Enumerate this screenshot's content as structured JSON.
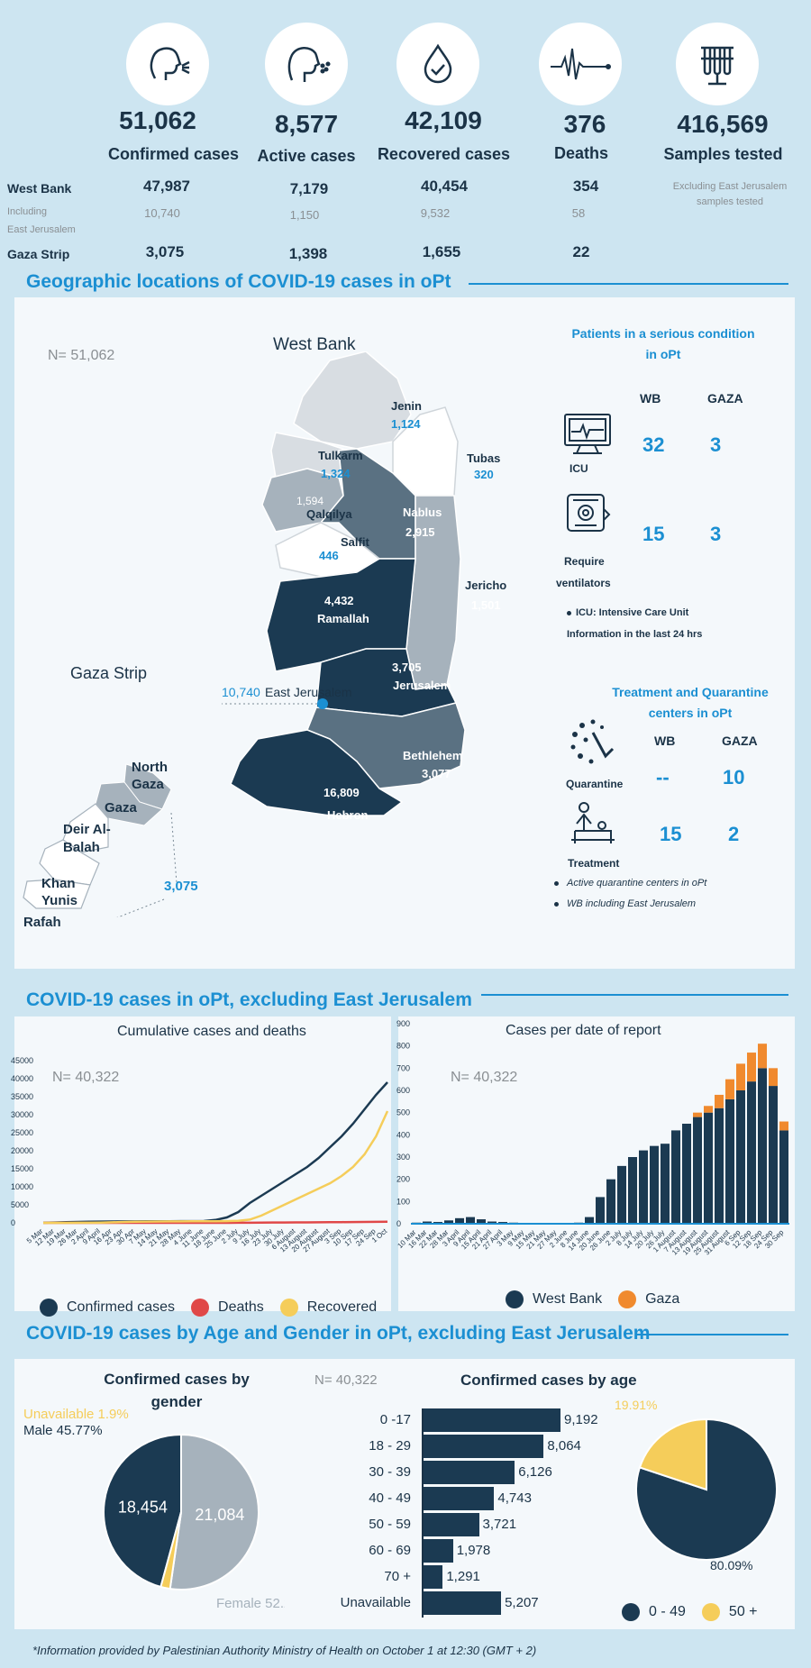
{
  "summary": {
    "items": [
      {
        "number": "51,062",
        "label": "Confirmed cases",
        "icon": "cough-person-icon"
      },
      {
        "number": "8,577",
        "label": "Active cases",
        "icon": "sneeze-person-icon"
      },
      {
        "number": "42,109",
        "label": "Recovered cases",
        "icon": "water-drop-check-icon"
      },
      {
        "number": "376",
        "label": "Deaths",
        "icon": "heartbeat-line-icon"
      },
      {
        "number": "416,569",
        "label": "Samples tested",
        "icon": "test-tubes-icon"
      }
    ],
    "rows": {
      "west_bank": {
        "label": "West Bank",
        "values": [
          "47,987",
          "7,179",
          "40,454",
          "354"
        ]
      },
      "including": {
        "label_line1": "Including",
        "label_line2": "East Jerusalem",
        "values": [
          "10,740",
          "1,150",
          "9,532",
          "58"
        ]
      },
      "gaza": {
        "label": "Gaza Strip",
        "values": [
          "3,075",
          "1,398",
          "1,655",
          "22"
        ]
      }
    },
    "samples_note_line1": "Excluding East Jerusalem",
    "samples_note_line2": "samples tested"
  },
  "geo": {
    "title": "Geographic locations of COVID-19 cases in oPt",
    "n_label": "N= 51,062",
    "west_bank_title": "West Bank",
    "gaza_title": "Gaza Strip",
    "regions": {
      "jenin": {
        "name": "Jenin",
        "value": "1,124"
      },
      "tulkarm": {
        "name": "Tulkarm",
        "value": "1,324"
      },
      "tubas": {
        "name": "Tubas",
        "value": "320"
      },
      "qalqilya": {
        "name": "Qalqilya",
        "value": "1,594"
      },
      "nablus": {
        "name": "Nablus",
        "value": "2,915"
      },
      "salfit": {
        "name": "Salfit",
        "value": "446"
      },
      "jericho": {
        "name": "Jericho",
        "value": "1,501"
      },
      "ramallah": {
        "name": "Ramallah",
        "value": "4,432"
      },
      "jerusalem": {
        "name": "Jerusalem",
        "value": "3,705"
      },
      "east_jerusalem": {
        "name": "East Jerusalem",
        "value": "10,740"
      },
      "bethlehem": {
        "name": "Bethlehem",
        "value": "3,077"
      },
      "hebron": {
        "name": "Hebron",
        "value": "16,809"
      }
    },
    "gaza_regions": [
      "North Gaza",
      "Gaza",
      "Deir Al-Balah",
      "Khan Yunis",
      "Rafah"
    ],
    "gaza_total": "3,075",
    "serious": {
      "title_line1": "Patients in a serious condition",
      "title_line2": "in oPt",
      "col_wb": "WB",
      "col_gaza": "GAZA",
      "icu_label": "ICU",
      "icu_wb": "32",
      "icu_gaza": "3",
      "vent_label_line1": "Require",
      "vent_label_line2": "ventilators",
      "vent_wb": "15",
      "vent_gaza": "3",
      "note1": "ICU: Intensive Care Unit",
      "note2": "Information in the last 24 hrs"
    },
    "treatment": {
      "title_line1": "Treatment and Quarantine",
      "title_line2": "centers in oPt",
      "col_wb": "WB",
      "col_gaza": "GAZA",
      "quarantine_label": "Quarantine",
      "quarantine_wb": "--",
      "quarantine_gaza": "10",
      "treatment_label": "Treatment",
      "treatment_wb": "15",
      "treatment_gaza": "2",
      "note1": "Active quarantine centers in oPt",
      "note2": "WB including East Jerusalem"
    }
  },
  "cases_section": {
    "title": "COVID-19 cases in oPt, excluding East Jerusalem"
  },
  "age_section": {
    "title": "COVID-19 cases by Age and Gender in oPt, excluding East Jerusalem",
    "n_label": "N= 40,322"
  },
  "footer": "*Information provided by Palestinian Authority Ministry of Health on October 1 at 12:30 (GMT + 2)",
  "colors": {
    "navy": "#1b3a52",
    "blue": "#1b8fd2",
    "gray": "#a6b2bc",
    "yellow": "#f5cd5a",
    "red": "#e04848",
    "orange": "#f08a2e"
  },
  "chart_data": [
    {
      "type": "line",
      "title": "Cumulative cases and deaths",
      "n_label": "N= 40,322",
      "x": [
        "5 Mar",
        "12 Mar",
        "19 Mar",
        "26 Mar",
        "2 April",
        "9 April",
        "16 Apr",
        "23 Apr",
        "30 Apr",
        "7 May",
        "14 May",
        "21 May",
        "28 May",
        "4 June",
        "11 June",
        "18 June",
        "25 June",
        "2 July",
        "9 July",
        "16 July",
        "23 July",
        "30 July",
        "6 August",
        "13 August",
        "20 August",
        "27 August",
        "3 Sep",
        "10 Sep",
        "17 Sep",
        "24 Sep",
        "1 Oct"
      ],
      "ylim": [
        0,
        45000
      ],
      "yticks": [
        0,
        5000,
        10000,
        15000,
        20000,
        25000,
        30000,
        35000,
        40000,
        45000
      ],
      "series": [
        {
          "name": "Confirmed cases",
          "color": "#1b3a52",
          "values": [
            20,
            100,
            200,
            250,
            300,
            350,
            380,
            400,
            420,
            430,
            440,
            450,
            460,
            470,
            500,
            800,
            1500,
            3000,
            5500,
            7500,
            9500,
            11500,
            13500,
            15500,
            18000,
            21000,
            24000,
            27500,
            31500,
            35500,
            39000
          ]
        },
        {
          "name": "Deaths",
          "color": "#e04848",
          "values": [
            0,
            0,
            0,
            1,
            2,
            3,
            4,
            4,
            4,
            4,
            4,
            4,
            4,
            4,
            4,
            5,
            10,
            20,
            40,
            60,
            80,
            100,
            120,
            140,
            160,
            180,
            200,
            220,
            250,
            280,
            300
          ]
        },
        {
          "name": "Recovered",
          "color": "#f5cd5a",
          "values": [
            0,
            0,
            10,
            20,
            40,
            60,
            150,
            250,
            300,
            350,
            380,
            400,
            420,
            430,
            440,
            450,
            480,
            550,
            900,
            2000,
            3500,
            5000,
            6500,
            8000,
            9500,
            11000,
            13000,
            15500,
            19000,
            24000,
            31000
          ]
        }
      ]
    },
    {
      "type": "bar",
      "stacked": true,
      "title": "Cases per date of report",
      "n_label": "N= 40,322",
      "x": [
        "10 Mar",
        "16 Mar",
        "22 Mar",
        "28 Mar",
        "3 April",
        "9 April",
        "15 April",
        "21 April",
        "27 April",
        "3 May",
        "9 May",
        "15 May",
        "21 May",
        "27 May",
        "2 June",
        "8 June",
        "14 June",
        "20 June",
        "26 June",
        "2 July",
        "8 July",
        "14 July",
        "20 July",
        "26 July",
        "1 August",
        "7 August",
        "13 August",
        "19 August",
        "25 August",
        "31 August",
        "6 Sep",
        "12 Sep",
        "18 Sep",
        "24 Sep",
        "30 Sep"
      ],
      "ylim": [
        0,
        900
      ],
      "yticks": [
        0,
        100,
        200,
        300,
        400,
        500,
        600,
        700,
        800,
        900
      ],
      "series": [
        {
          "name": "West Bank",
          "color": "#1b3a52",
          "values": [
            5,
            10,
            8,
            15,
            25,
            30,
            20,
            10,
            8,
            5,
            3,
            2,
            2,
            3,
            2,
            5,
            30,
            120,
            200,
            260,
            300,
            330,
            350,
            360,
            420,
            450,
            480,
            500,
            520,
            560,
            600,
            640,
            700,
            620,
            420
          ]
        },
        {
          "name": "Gaza",
          "color": "#f08a2e",
          "values": [
            0,
            0,
            0,
            0,
            0,
            0,
            0,
            0,
            0,
            0,
            0,
            0,
            0,
            0,
            0,
            0,
            0,
            0,
            0,
            0,
            0,
            0,
            0,
            0,
            0,
            0,
            20,
            30,
            60,
            90,
            120,
            130,
            110,
            80,
            40
          ]
        }
      ]
    },
    {
      "type": "pie",
      "title": "Confirmed cases by gender",
      "labels": [
        "Male",
        "Female",
        "Unavailable"
      ],
      "values": [
        18454,
        21084,
        784
      ],
      "percent_labels": [
        "Male 45.77%",
        "Female 52.29%",
        "Unavailable 1.9%"
      ],
      "slice_labels": [
        "18,454",
        "21,084",
        ""
      ],
      "colors": [
        "#1b3a52",
        "#a6b2bc",
        "#f5cd5a"
      ]
    },
    {
      "type": "bar",
      "orientation": "horizontal",
      "title": "Confirmed cases by age",
      "categories": [
        "0 -17",
        "18 - 29",
        "30 - 39",
        "40 - 49",
        "50 - 59",
        "60 - 69",
        "70 +",
        "Unavailable"
      ],
      "values": [
        9192,
        8064,
        6126,
        4743,
        3721,
        1978,
        1291,
        5207
      ],
      "value_labels": [
        "9,192",
        "8,064",
        "6,126",
        "4,743",
        "3,721",
        "1,978",
        "1,291",
        "5,207"
      ]
    },
    {
      "type": "pie",
      "labels": [
        "0 - 49",
        "50 +"
      ],
      "values": [
        80.09,
        19.91
      ],
      "percent_labels": [
        "80.09%",
        "19.91%"
      ],
      "colors": [
        "#1b3a52",
        "#f5cd5a"
      ]
    }
  ]
}
